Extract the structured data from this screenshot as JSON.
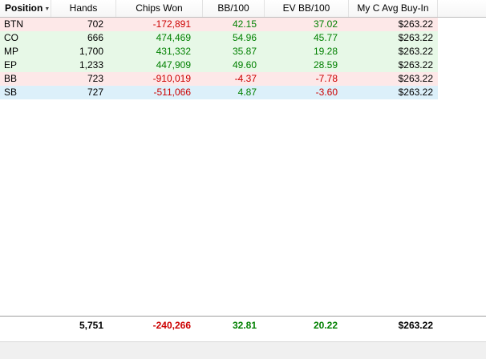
{
  "colors": {
    "negative_text": "#cc0000",
    "positive_text": "#008000",
    "row_loss_bg": "#fde8e8",
    "row_win_bg": "#e7f8e7",
    "row_selected_bg": "#dcf0fa"
  },
  "icons": {
    "sort_desc": "▼"
  },
  "table": {
    "columns": [
      {
        "label": "Position",
        "sorted": "desc"
      },
      {
        "label": "Hands"
      },
      {
        "label": "Chips Won"
      },
      {
        "label": "BB/100"
      },
      {
        "label": "EV BB/100"
      },
      {
        "label": "My C Avg Buy-In"
      }
    ],
    "rows": [
      {
        "position": "BTN",
        "hands": "702",
        "chips_won": "-172,891",
        "bb100": "42.15",
        "ev_bb100": "37.02",
        "buyin": "$263.22",
        "highlight": "loss"
      },
      {
        "position": "CO",
        "hands": "666",
        "chips_won": "474,469",
        "bb100": "54.96",
        "ev_bb100": "45.77",
        "buyin": "$263.22",
        "highlight": "win"
      },
      {
        "position": "MP",
        "hands": "1,700",
        "chips_won": "431,332",
        "bb100": "35.87",
        "ev_bb100": "19.28",
        "buyin": "$263.22",
        "highlight": "win"
      },
      {
        "position": "EP",
        "hands": "1,233",
        "chips_won": "447,909",
        "bb100": "49.60",
        "ev_bb100": "28.59",
        "buyin": "$263.22",
        "highlight": "win"
      },
      {
        "position": "BB",
        "hands": "723",
        "chips_won": "-910,019",
        "bb100": "-4.37",
        "ev_bb100": "-7.78",
        "buyin": "$263.22",
        "highlight": "loss"
      },
      {
        "position": "SB",
        "hands": "727",
        "chips_won": "-511,066",
        "bb100": "4.87",
        "ev_bb100": "-3.60",
        "buyin": "$263.22",
        "highlight": "selected"
      }
    ],
    "totals": {
      "hands": "5,751",
      "chips_won": "-240,266",
      "bb100": "32.81",
      "ev_bb100": "20.22",
      "buyin": "$263.22"
    }
  }
}
